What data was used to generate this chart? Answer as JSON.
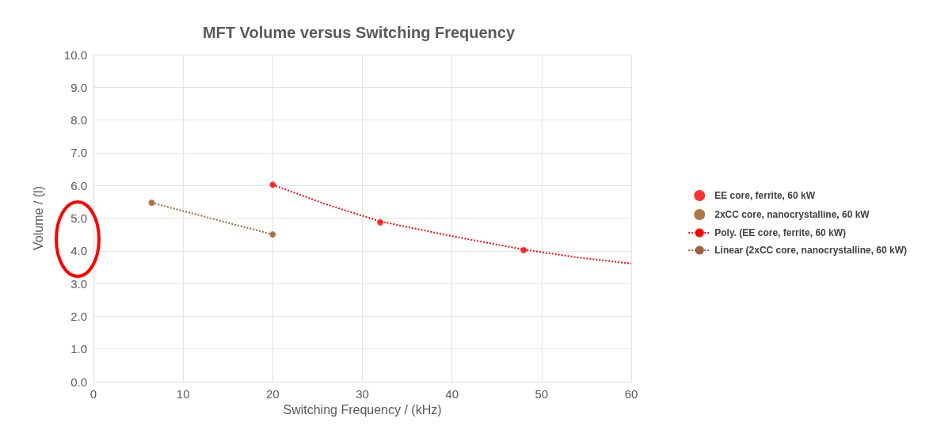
{
  "chart_data": {
    "type": "scatter",
    "title": "MFT Volume versus Switching Frequency",
    "xlabel": "Switching Frequency / (kHz)",
    "ylabel": "Volume / (l)",
    "xlim": [
      0,
      60
    ],
    "xticks": [
      0,
      10,
      20,
      30,
      40,
      50,
      60
    ],
    "ylim": [
      0,
      10
    ],
    "yticks": [
      {
        "value": 0,
        "label": "0.0"
      },
      {
        "value": 1,
        "label": "1.0"
      },
      {
        "value": 2,
        "label": "2.0"
      },
      {
        "value": 3,
        "label": "3.0"
      },
      {
        "value": 4,
        "label": "4.0"
      },
      {
        "value": 5,
        "label": "5.0"
      },
      {
        "value": 6,
        "label": "6.0"
      },
      {
        "value": 7,
        "label": "7.0"
      },
      {
        "value": 8,
        "label": "8.0"
      },
      {
        "value": 9,
        "label": "9.0"
      },
      {
        "value": 10,
        "label": "10.0"
      }
    ],
    "grid": true,
    "legend": "right",
    "marker": "circle",
    "series": [
      {
        "name": "EE core, ferrite, 60 kW",
        "color": "#ff0000",
        "x": [
          20,
          32,
          48
        ],
        "values": [
          6.02,
          4.87,
          4.02
        ]
      },
      {
        "name": "2xCC core, nanocrystalline, 60 kW",
        "color": "#9c5518",
        "x": [
          6.5,
          20
        ],
        "values": [
          5.47,
          4.5
        ]
      },
      {
        "name": "Poly. (EE core, ferrite, 60 kW)",
        "type": "line",
        "marker": "none",
        "line_style": "dotted",
        "color": "#ff0000",
        "x": [
          20,
          26,
          32,
          40,
          48,
          54,
          60
        ],
        "values": [
          6.02,
          5.42,
          4.9,
          4.45,
          4.04,
          3.8,
          3.61
        ]
      },
      {
        "name": "Linear (2xCC core, nanocrystalline, 60 kW)",
        "type": "line",
        "marker": "none",
        "line_style": "dotted",
        "color": "#a0623a",
        "x": [
          6.5,
          20
        ],
        "values": [
          5.47,
          4.5
        ]
      }
    ]
  }
}
